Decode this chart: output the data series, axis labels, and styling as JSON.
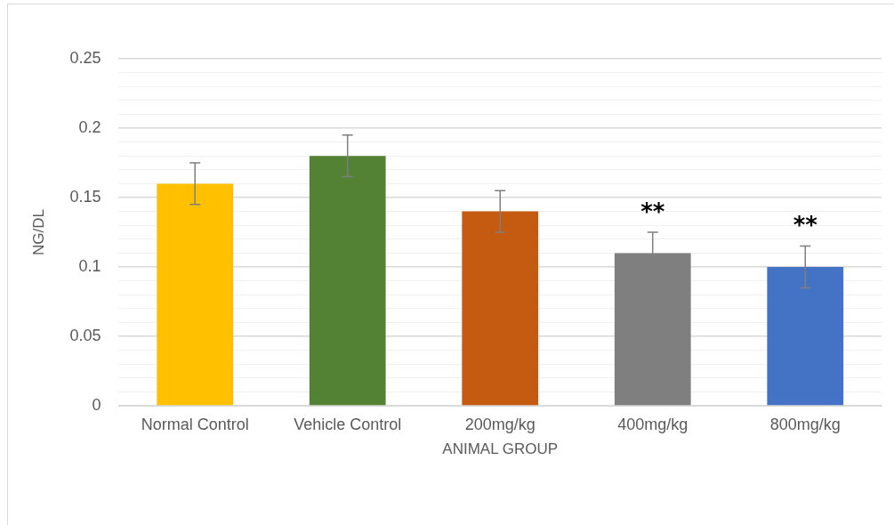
{
  "chart_data": {
    "type": "bar",
    "xlabel": "ANIMAL GROUP",
    "ylabel": "NG/DL",
    "categories": [
      "Normal Control",
      "Vehicle Control",
      "200mg/kg",
      "400mg/kg",
      "800mg/kg"
    ],
    "values": [
      0.16,
      0.18,
      0.14,
      0.11,
      0.1
    ],
    "colors": [
      "#ffc000",
      "#548235",
      "#c55a11",
      "#7f7f7f",
      "#4472c4"
    ],
    "errors": [
      0.015,
      0.015,
      0.015,
      0.015,
      0.015
    ],
    "ylim": [
      0,
      0.25
    ],
    "yticks": [
      0,
      {
        "value": 0.01,
        "label": null
      },
      {
        "value": 0.02,
        "label": null
      },
      {
        "value": 0.03,
        "label": null
      },
      {
        "value": 0.04,
        "label": null
      },
      0.05,
      {
        "value": 0.06,
        "label": null
      },
      {
        "value": 0.07,
        "label": null
      },
      {
        "value": 0.08,
        "label": null
      },
      {
        "value": 0.09,
        "label": null
      },
      0.1,
      {
        "value": 0.11,
        "label": null
      },
      {
        "value": 0.12,
        "label": null
      },
      {
        "value": 0.13,
        "label": null
      },
      {
        "value": 0.14,
        "label": null
      },
      0.15,
      {
        "value": 0.16,
        "label": null
      },
      {
        "value": 0.17,
        "label": null
      },
      {
        "value": 0.18,
        "label": null
      },
      {
        "value": 0.19,
        "label": null
      },
      0.2,
      {
        "value": 0.21,
        "label": null
      },
      {
        "value": 0.22,
        "label": null
      },
      {
        "value": 0.23,
        "label": null
      },
      {
        "value": 0.24,
        "label": null
      },
      0.25
    ],
    "grid": true,
    "annotations": [
      {
        "text": "**",
        "x": "400mg/kg",
        "y": 0.125
      },
      {
        "text": "**",
        "x": "800mg/kg",
        "y": 0.115
      }
    ]
  }
}
